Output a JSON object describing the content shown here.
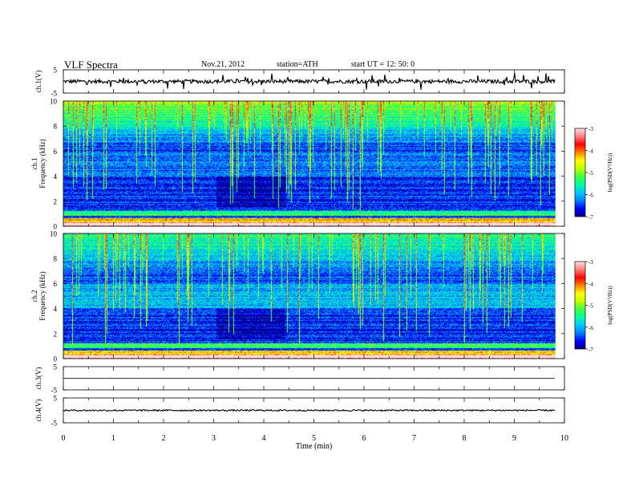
{
  "header": {
    "title": "VLF  Spectra",
    "date": "Nov.21, 2012",
    "station": "station=ATH",
    "start": "start  UT  =    12: 50: 0"
  },
  "colorbar": {
    "label": "log(PSD(V²/Hz))",
    "ticks": [
      "-3",
      "-4",
      "-5",
      "-6",
      "-7"
    ],
    "colors": [
      "#000080",
      "#0000ff",
      "#0080ff",
      "#00c8ff",
      "#00ffa0",
      "#40ff40",
      "#c0ff00",
      "#ffff00",
      "#ff8000",
      "#ff0000",
      "#ff8080",
      "#ffe0e0"
    ]
  },
  "chart_data": {
    "type": "heatmap",
    "x_axis": {
      "label": "Time  (min)",
      "range": [
        0,
        10
      ],
      "ticks": [
        "0",
        "1",
        "2",
        "3",
        "4",
        "5",
        "6",
        "7",
        "8",
        "9",
        "10"
      ]
    },
    "data_end_min": 9.82,
    "panels": [
      {
        "kind": "waveform",
        "ylabel": "ch.1(V)",
        "yticks": [
          "5",
          "-5"
        ],
        "yrange": [
          -5,
          5
        ],
        "level": 0,
        "noise": 0.8
      },
      {
        "kind": "spectrogram",
        "ylabel": "ch.1\nFrequency  (kHz)",
        "yticks": [
          "10",
          "8",
          "6",
          "4",
          "2",
          "0"
        ],
        "yrange": [
          0,
          10
        ],
        "z_range": [
          -7,
          -3
        ]
      },
      {
        "kind": "spectrogram",
        "ylabel": "ch.2\nFrequency  (kHz)",
        "yticks": [
          "10",
          "8",
          "6",
          "4",
          "2",
          "0"
        ],
        "yrange": [
          0,
          10
        ],
        "z_range": [
          -7,
          -3
        ]
      },
      {
        "kind": "waveform",
        "ylabel": "ch.3(V)",
        "yticks": [
          "5",
          "-5"
        ],
        "yrange": [
          -5,
          5
        ],
        "level": 0,
        "noise": 0.05
      },
      {
        "kind": "waveform",
        "ylabel": "ch.4(V)",
        "yticks": [
          "5",
          "-5"
        ],
        "yrange": [
          -5,
          5
        ],
        "level": 0,
        "noise": 0.3
      }
    ]
  }
}
